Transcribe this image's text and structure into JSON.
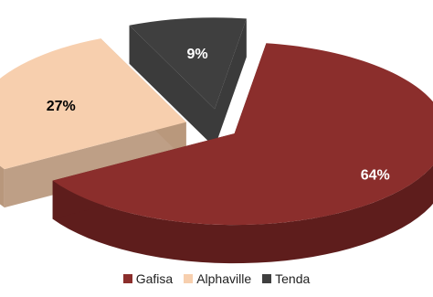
{
  "chart_data": {
    "type": "pie",
    "style": "3d-exploded",
    "slices": [
      {
        "name": "Gafisa",
        "value": 64,
        "label": "64%",
        "color": "#8B2E2C",
        "side_color": "#5E1D1C",
        "label_color": "#ffffff"
      },
      {
        "name": "Alphaville",
        "value": 27,
        "label": "27%",
        "color": "#F7CFAE",
        "side_color": "#B8977C",
        "label_color": "#000000"
      },
      {
        "name": "Tenda",
        "value": 9,
        "label": "9%",
        "color": "#3F3F3F",
        "side_color": "#2A2A2A",
        "label_color": "#ffffff"
      }
    ],
    "legend_position": "bottom"
  },
  "legend": {
    "items": [
      {
        "label": "Gafisa",
        "color": "#8B2E2C"
      },
      {
        "label": "Alphaville",
        "color": "#F7CFAE"
      },
      {
        "label": "Tenda",
        "color": "#3F3F3F"
      }
    ]
  }
}
